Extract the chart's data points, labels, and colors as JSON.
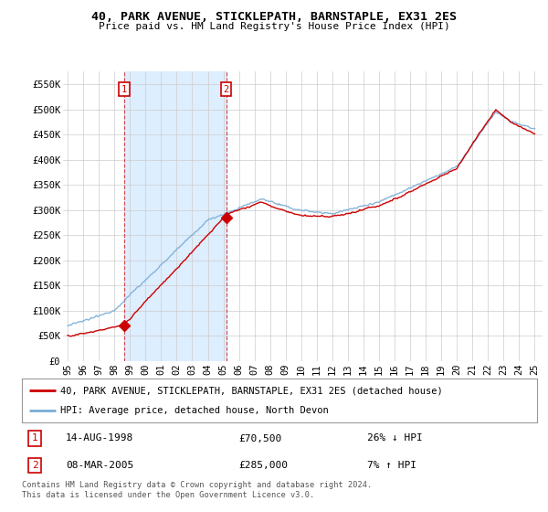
{
  "title": "40, PARK AVENUE, STICKLEPATH, BARNSTAPLE, EX31 2ES",
  "subtitle": "Price paid vs. HM Land Registry's House Price Index (HPI)",
  "red_label": "40, PARK AVENUE, STICKLEPATH, BARNSTAPLE, EX31 2ES (detached house)",
  "blue_label": "HPI: Average price, detached house, North Devon",
  "annotation1_date": "14-AUG-1998",
  "annotation1_price": "£70,500",
  "annotation1_hpi": "26% ↓ HPI",
  "annotation2_date": "08-MAR-2005",
  "annotation2_price": "£285,000",
  "annotation2_hpi": "7% ↑ HPI",
  "footnote": "Contains HM Land Registry data © Crown copyright and database right 2024.\nThis data is licensed under the Open Government Licence v3.0.",
  "red_color": "#cc0000",
  "blue_color": "#7aadd4",
  "shade_color": "#ddeeff",
  "grid_color": "#cccccc",
  "background_color": "#ffffff",
  "ylim": [
    0,
    575000
  ],
  "yticks": [
    0,
    50000,
    100000,
    150000,
    200000,
    250000,
    300000,
    350000,
    400000,
    450000,
    500000,
    550000
  ],
  "ytick_labels": [
    "£0",
    "£50K",
    "£100K",
    "£150K",
    "£200K",
    "£250K",
    "£300K",
    "£350K",
    "£400K",
    "£450K",
    "£500K",
    "£550K"
  ],
  "xtick_years": [
    1995,
    1996,
    1997,
    1998,
    1999,
    2000,
    2001,
    2002,
    2003,
    2004,
    2005,
    2006,
    2007,
    2008,
    2009,
    2010,
    2011,
    2012,
    2013,
    2014,
    2015,
    2016,
    2017,
    2018,
    2019,
    2020,
    2021,
    2022,
    2023,
    2024,
    2025
  ],
  "sale1_x": 1998.62,
  "sale1_y": 70500,
  "sale2_x": 2005.18,
  "sale2_y": 285000
}
